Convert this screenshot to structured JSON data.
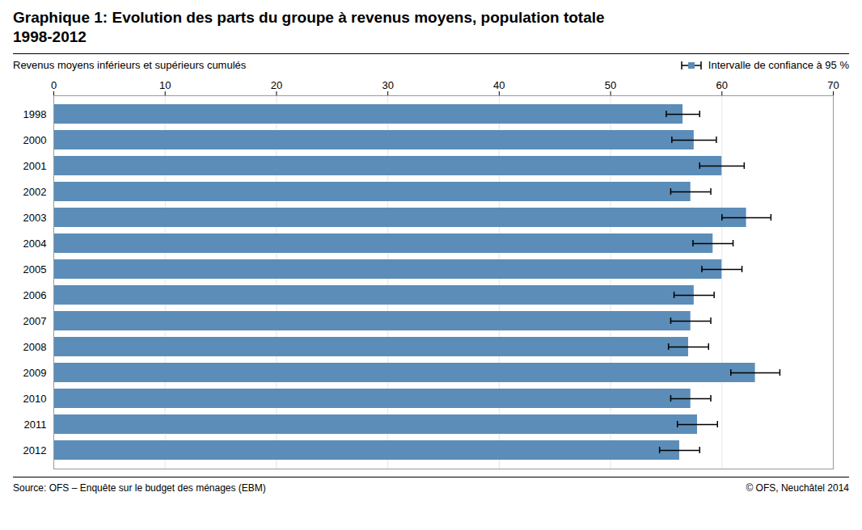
{
  "chart_data": {
    "type": "bar",
    "orientation": "horizontal",
    "title": "Graphique 1: Evolution des parts du groupe à revenus moyens, population totale\n1998-2012",
    "xlabel": "Revenus moyens inférieurs et supérieurs cumulés",
    "error_label": "Intervalle de confiance à 95 %",
    "source": "Source: OFS – Enquête sur le budget des ménages (EBM)",
    "copyright": "© OFS, Neuchâtel 2014",
    "categories": [
      "1998",
      "2000",
      "2001",
      "2002",
      "2003",
      "2004",
      "2005",
      "2006",
      "2007",
      "2008",
      "2009",
      "2010",
      "2011",
      "2012"
    ],
    "values": [
      56.5,
      57.5,
      60.0,
      57.2,
      62.2,
      59.2,
      60.0,
      57.5,
      57.2,
      57.0,
      63.0,
      57.2,
      57.8,
      56.2
    ],
    "errors": [
      1.5,
      2.0,
      2.0,
      1.8,
      2.2,
      1.8,
      1.8,
      1.8,
      1.8,
      1.8,
      2.2,
      1.8,
      1.8,
      1.8
    ],
    "color": "#5B8DB8",
    "xlim": [
      0,
      70
    ],
    "xticks": [
      0,
      10,
      20,
      30,
      40,
      50,
      60,
      70
    ],
    "grid": true
  }
}
